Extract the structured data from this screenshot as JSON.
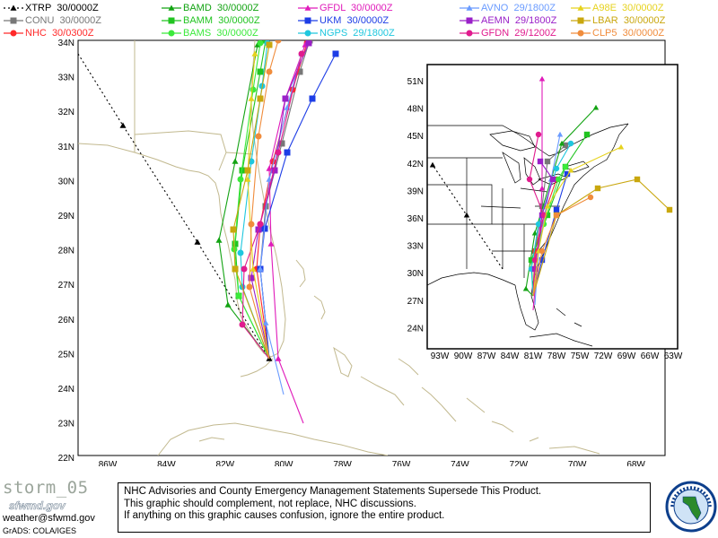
{
  "legend": {
    "items": [
      {
        "label": "XTRP",
        "time": "30/0000Z",
        "color": "#000000",
        "marker": "triangle",
        "dotted": true
      },
      {
        "label": "CONU",
        "time": "30/0000Z",
        "color": "#777777",
        "marker": "square"
      },
      {
        "label": "NHC",
        "time": "30/0300Z",
        "color": "#ff2a2a",
        "marker": "circle"
      },
      {
        "label": "BAMD",
        "time": "30/0000Z",
        "color": "#13a313",
        "marker": "triangle"
      },
      {
        "label": "BAMM",
        "time": "30/0000Z",
        "color": "#21c421",
        "marker": "square"
      },
      {
        "label": "BAMS",
        "time": "30/0000Z",
        "color": "#3bea3b",
        "marker": "circle"
      },
      {
        "label": "GFDL",
        "time": "30/0000Z",
        "color": "#e01bba",
        "marker": "triangle"
      },
      {
        "label": "UKM",
        "time": "30/0000Z",
        "color": "#1d3de6",
        "marker": "square"
      },
      {
        "label": "NGPS",
        "time": "29/1800Z",
        "color": "#1fc7de",
        "marker": "circle"
      },
      {
        "label": "AVNO",
        "time": "29/1800Z",
        "color": "#6a9bff",
        "marker": "triangle"
      },
      {
        "label": "AEMN",
        "time": "29/1800Z",
        "color": "#9a20c8",
        "marker": "square"
      },
      {
        "label": "GFDN",
        "time": "29/1200Z",
        "color": "#e01b8e",
        "marker": "circle"
      },
      {
        "label": "A98E",
        "time": "30/0000Z",
        "color": "#e6d21d",
        "marker": "triangle"
      },
      {
        "label": "LBAR",
        "time": "30/0000Z",
        "color": "#c9a70e",
        "marker": "square"
      },
      {
        "label": "CLP5",
        "time": "30/0000Z",
        "color": "#f08c3c",
        "marker": "circle"
      }
    ]
  },
  "main_map": {
    "lat_labels": [
      "34N",
      "33N",
      "32N",
      "31N",
      "30N",
      "29N",
      "28N",
      "27N",
      "26N",
      "25N",
      "24N",
      "23N",
      "22N"
    ],
    "lon_labels": [
      "86W",
      "84W",
      "82W",
      "80W",
      "78W",
      "76W",
      "74W",
      "72W",
      "70W",
      "68W"
    ]
  },
  "inset_map": {
    "lat_labels": [
      "51N",
      "48N",
      "45N",
      "42N",
      "39N",
      "36N",
      "33N",
      "30N",
      "27N",
      "24N"
    ],
    "lon_labels": [
      "93W",
      "90W",
      "87W",
      "84W",
      "81W",
      "78W",
      "75W",
      "72W",
      "69W",
      "66W",
      "63W"
    ]
  },
  "footer": {
    "storm_name": "storm_05",
    "logo_text": "sfwmd.gov",
    "email": "weather@sfwmd.gov",
    "grads": "GrADS: COLA/IGES",
    "disclaimer_line1": "NHC Advisories and County Emergency Management Statements Supersede This Product.",
    "disclaimer_line2": "This graphic should complement, not replace, NHC discussions.",
    "disclaimer_line3": "If anything on this graphic causes confusion, ignore the entire product.",
    "seal_text": "SOUTH FLORIDA WATER MANAGEMENT DISTRICT"
  }
}
